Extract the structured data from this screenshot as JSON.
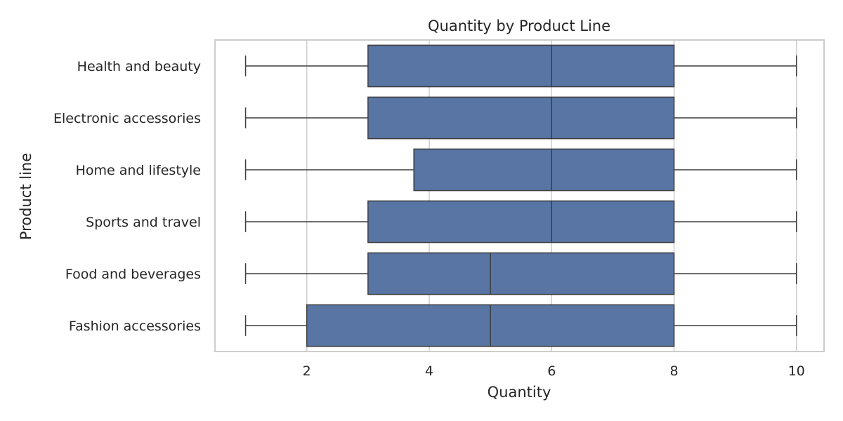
{
  "chart_data": {
    "type": "boxplot",
    "orientation": "horizontal",
    "title": "Quantity by Product Line",
    "xlabel": "Quantity",
    "ylabel": "Product line",
    "xlim": [
      0.5,
      10.45
    ],
    "xticks": [
      2,
      4,
      6,
      8,
      10
    ],
    "grid": "vertical",
    "legend": "none",
    "box_color": "#5875a4",
    "edge_color": "#3d3d3d",
    "categories": [
      "Health and beauty",
      "Electronic accessories",
      "Home and lifestyle",
      "Sports and travel",
      "Food and beverages",
      "Fashion accessories"
    ],
    "boxes": [
      {
        "category": "Health and beauty",
        "whislo": 1,
        "q1": 3,
        "med": 6,
        "q3": 8,
        "whishi": 10
      },
      {
        "category": "Electronic accessories",
        "whislo": 1,
        "q1": 3,
        "med": 6,
        "q3": 8,
        "whishi": 10
      },
      {
        "category": "Home and lifestyle",
        "whislo": 1,
        "q1": 3.75,
        "med": 6,
        "q3": 8,
        "whishi": 10
      },
      {
        "category": "Sports and travel",
        "whislo": 1,
        "q1": 3,
        "med": 6,
        "q3": 8,
        "whishi": 10
      },
      {
        "category": "Food and beverages",
        "whislo": 1,
        "q1": 3,
        "med": 5,
        "q3": 8,
        "whishi": 10
      },
      {
        "category": "Fashion accessories",
        "whislo": 1,
        "q1": 2,
        "med": 5,
        "q3": 8,
        "whishi": 10
      }
    ]
  }
}
